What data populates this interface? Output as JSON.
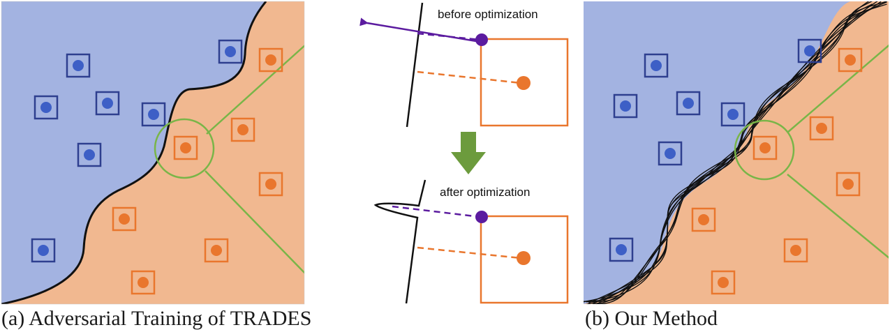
{
  "panels": {
    "left": {
      "caption": "(a) Adversarial Training of TRADES"
    },
    "right": {
      "caption": "(b) Our Method"
    }
  },
  "inset": {
    "before_label": "before optimization",
    "after_label": "after optimization"
  },
  "colors": {
    "blue_region": "#a3b3e1",
    "orange_region": "#f1b890",
    "blue_point": "#3d5fc6",
    "blue_box": "#2e3f8f",
    "orange_point": "#e9762d",
    "orange_box": "#e9762d",
    "highlight": "#79b548",
    "adversarial_point": "#5b1b9f",
    "arrow": "#6c9b3d"
  }
}
